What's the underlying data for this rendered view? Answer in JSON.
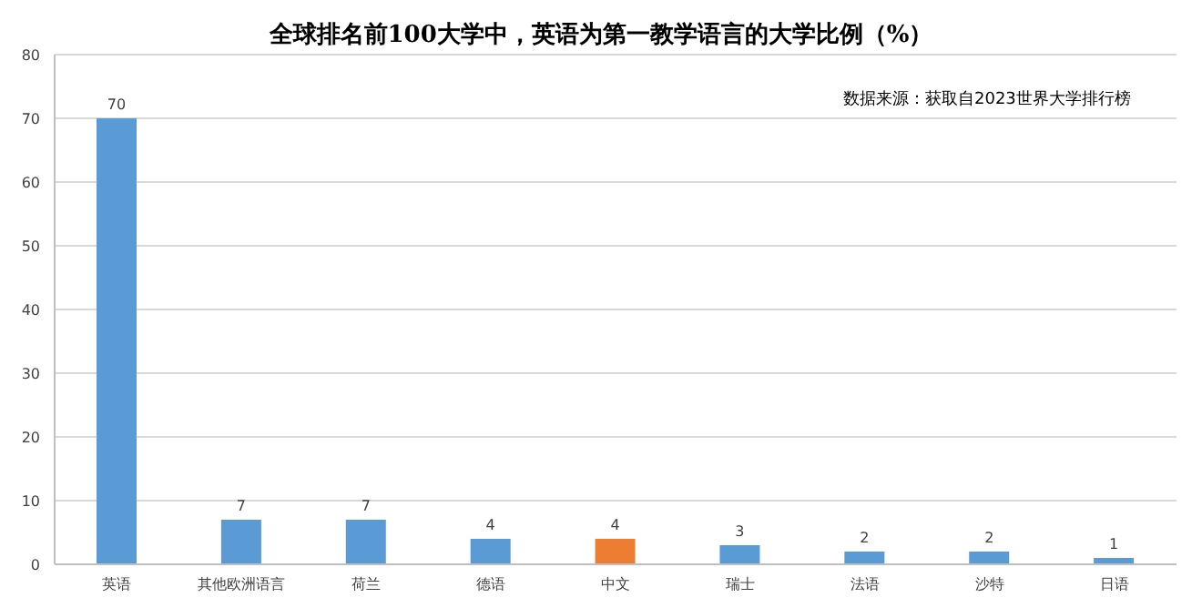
{
  "chart_data": {
    "type": "bar",
    "title": "全球排名前100大学中，英语为第一教学语言的大学比例（%）",
    "categories": [
      "英语",
      "其他欧洲语言",
      "荷兰",
      "德语",
      "中文",
      "瑞士",
      "法语",
      "沙特",
      "日语"
    ],
    "values": [
      70,
      7,
      7,
      4,
      4,
      3,
      2,
      2,
      1
    ],
    "colors": [
      "#5b9bd5",
      "#5b9bd5",
      "#5b9bd5",
      "#5b9bd5",
      "#ed7d31",
      "#5b9bd5",
      "#5b9bd5",
      "#5b9bd5",
      "#5b9bd5"
    ],
    "ylim": [
      0,
      80
    ],
    "yticks": [
      0,
      10,
      20,
      30,
      40,
      50,
      60,
      70,
      80
    ],
    "grid": "y",
    "data_labels": true,
    "annotations": [
      "数据来源：获取自2023世界大学排行榜"
    ]
  }
}
